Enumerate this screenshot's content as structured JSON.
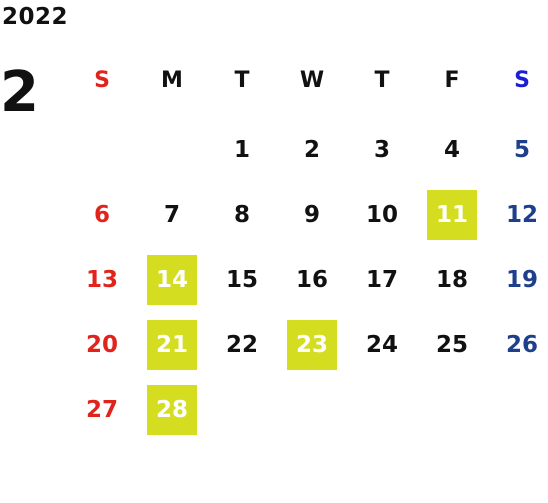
{
  "calendar": {
    "year": "2022",
    "month": "2",
    "colors": {
      "sunday": "#e0241c",
      "saturday_header": "#1a1fd6",
      "saturday": "#1e3f8c",
      "weekday": "#111111",
      "highlight_bg": "#d4dd1f",
      "highlight_text": "#ffffff"
    },
    "weekdays": [
      "S",
      "M",
      "T",
      "W",
      "T",
      "F",
      "S"
    ],
    "weeks": [
      [
        "",
        "",
        "1",
        "2",
        "3",
        "4",
        "5"
      ],
      [
        "6",
        "7",
        "8",
        "9",
        "10",
        "11",
        "12"
      ],
      [
        "13",
        "14",
        "15",
        "16",
        "17",
        "18",
        "19"
      ],
      [
        "20",
        "21",
        "22",
        "23",
        "24",
        "25",
        "26"
      ],
      [
        "27",
        "28",
        "",
        "",
        "",
        "",
        ""
      ]
    ],
    "highlighted_days": [
      "11",
      "14",
      "21",
      "23",
      "28"
    ]
  }
}
